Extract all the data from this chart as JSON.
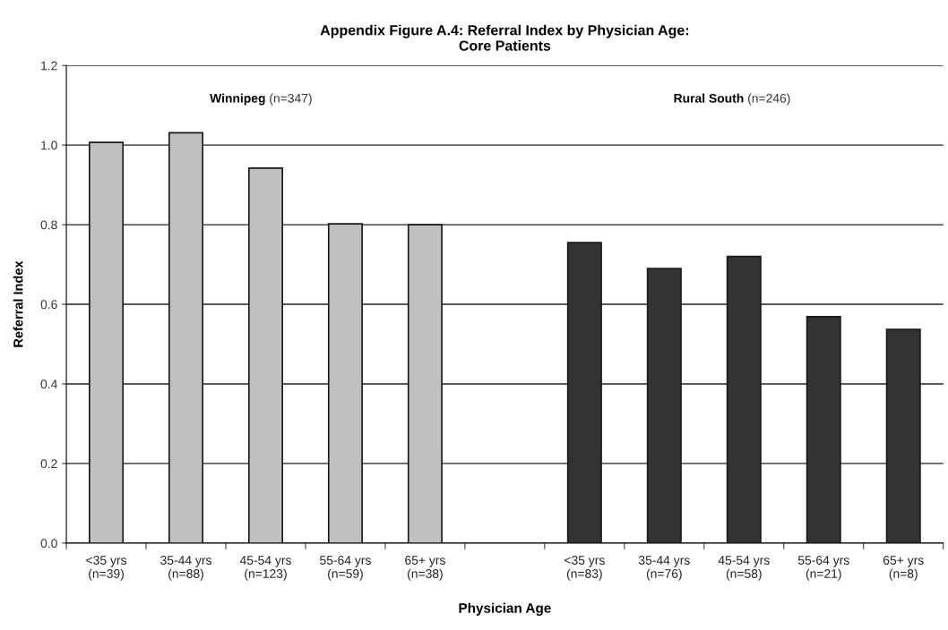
{
  "chart_data": {
    "type": "bar",
    "title": "Appendix Figure A.4: Referral Index by Physician Age:\nCore Patients",
    "xlabel": "Physician Age",
    "ylabel": "Referral Index",
    "categories": [
      "<35 yrs\n(n=39)",
      "35-44 yrs\n(n=88)",
      "45-54 yrs\n(n=123)",
      "55-64 yrs\n(n=59)",
      "65+ yrs\n(n=38)",
      null,
      "<35 yrs\n(n=83)",
      "35-44 yrs\n(n=76)",
      "45-54 yrs\n(n=58)",
      "55-64 yrs\n(n=21)",
      "65+ yrs\n(n=8)"
    ],
    "series": [
      {
        "color": "#c0c0c0",
        "values": [
          1.007,
          1.031,
          0.942,
          0.802,
          0.8,
          null,
          null,
          null,
          null,
          null,
          null
        ]
      },
      {
        "color": "#333333",
        "values": [
          null,
          null,
          null,
          null,
          null,
          null,
          0.755,
          0.69,
          0.72,
          0.569,
          0.537
        ]
      }
    ],
    "annotations": [
      "Winnipeg (n=347)",
      "Rural South (n=246)"
    ],
    "ylim": [
      0,
      1.2
    ],
    "yticks": [
      {
        "value": 0,
        "label": "0.0"
      },
      0.2,
      0.4,
      0.6,
      0.8,
      {
        "value": 1,
        "label": "1.0"
      },
      1.2
    ],
    "grid": "y"
  }
}
